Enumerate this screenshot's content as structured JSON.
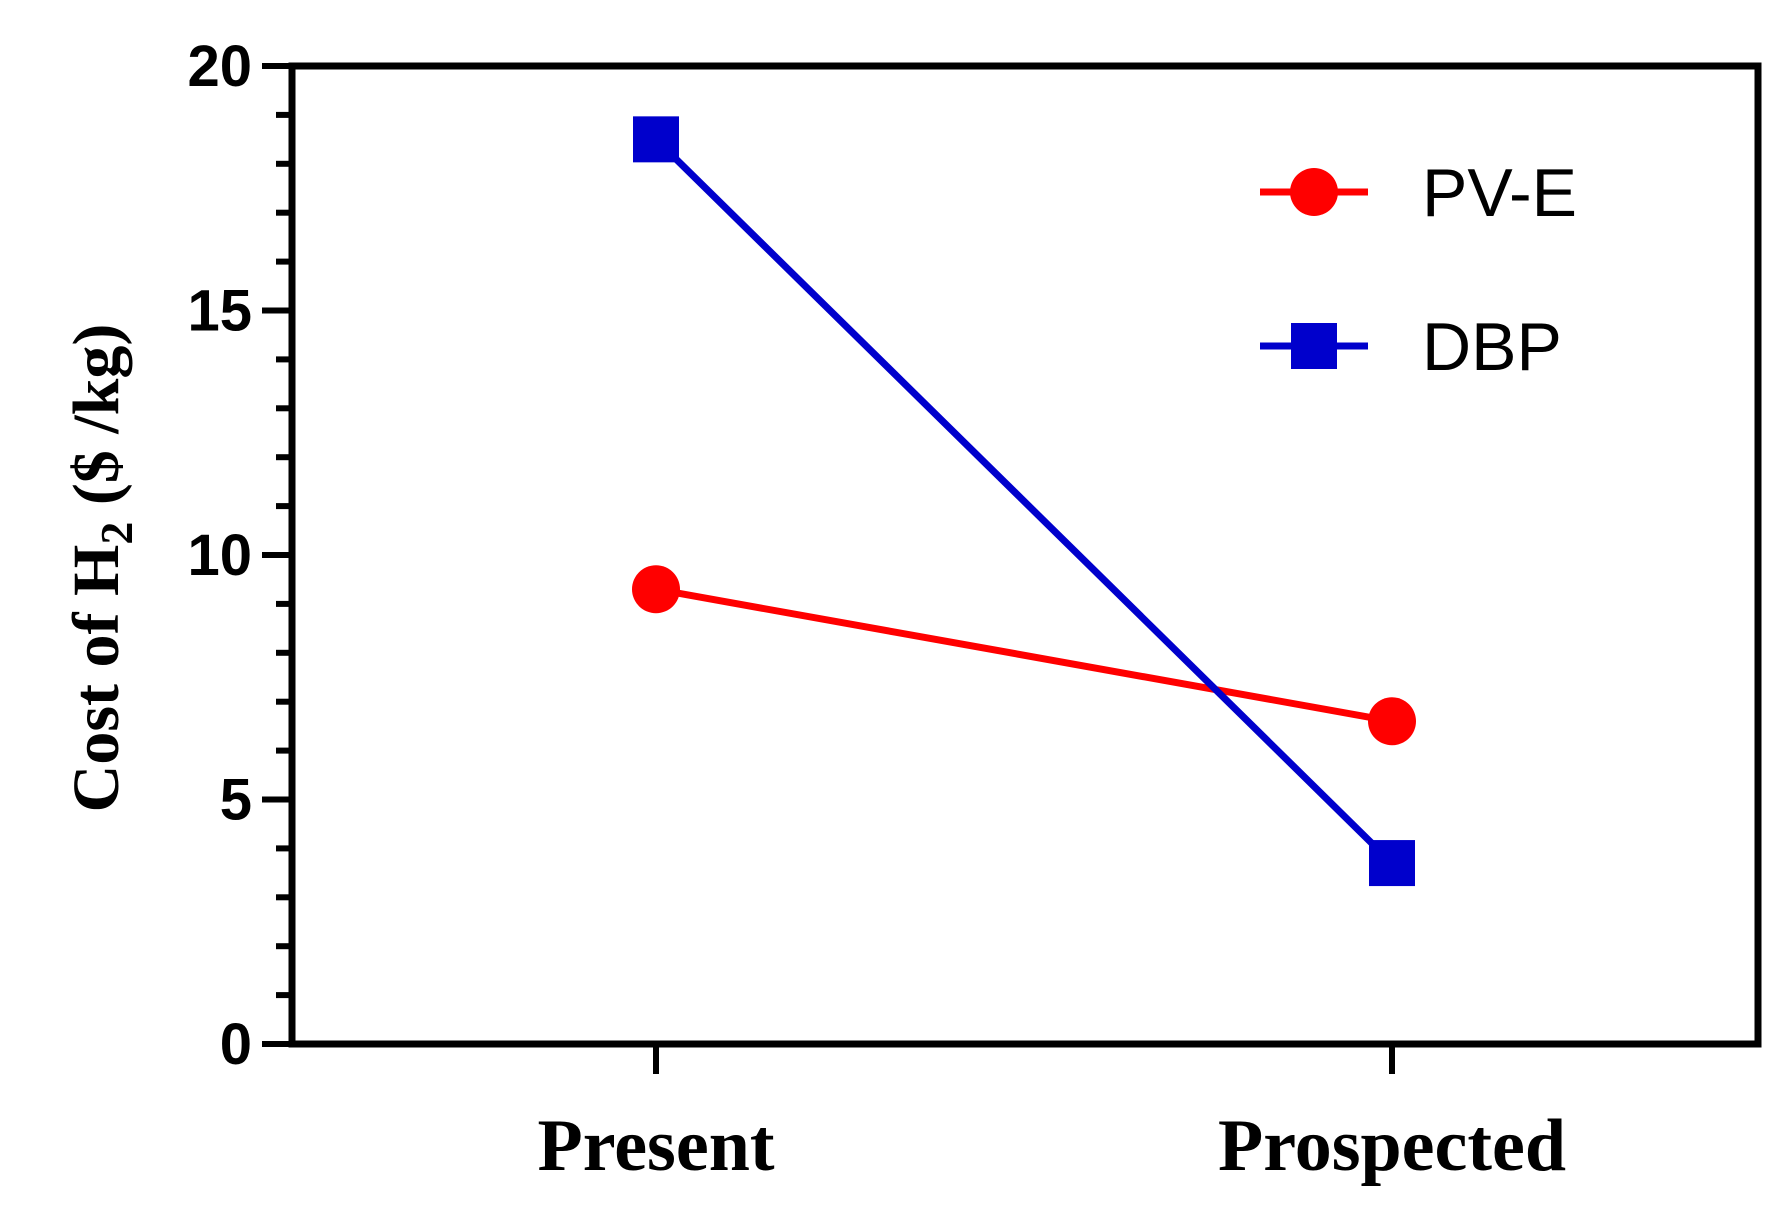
{
  "chart_data": {
    "type": "line",
    "categories": [
      "Present",
      "Prospected"
    ],
    "ylabel_main": "Cost of H",
    "ylabel_sub": "2",
    "ylabel_tail": " ($ /kg)",
    "ylim": [
      0,
      20
    ],
    "yticks": [
      0,
      5,
      10,
      15,
      20
    ],
    "y_minor_step": 1,
    "grid": false,
    "legend_position": "top-right",
    "series": [
      {
        "name": "PV-E",
        "values": [
          9.3,
          6.6
        ],
        "color": "#ff0000",
        "marker": "circle"
      },
      {
        "name": "DBP",
        "values": [
          18.5,
          3.7
        ],
        "color": "#0000cc",
        "marker": "square"
      }
    ]
  }
}
